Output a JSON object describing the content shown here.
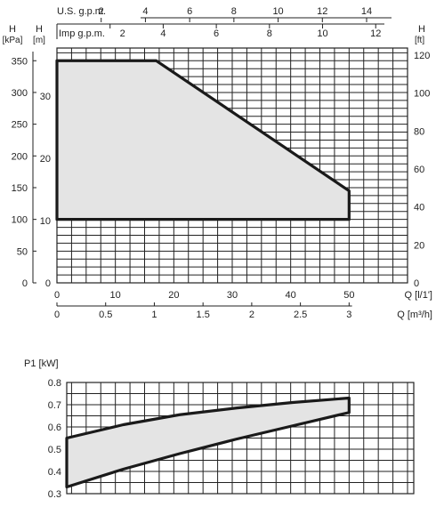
{
  "chart_data": [
    {
      "type": "area",
      "top_axis_1": {
        "label": "U.S. g.p.m.",
        "ticks": [
          "2",
          "4",
          "6",
          "8",
          "10",
          "12",
          "14"
        ]
      },
      "top_axis_2": {
        "label": "Imp g.p.m.",
        "ticks": [
          "2",
          "4",
          "6",
          "8",
          "10",
          "12"
        ]
      },
      "left_axis_kpa": {
        "title": "H",
        "unit": "[kPa]",
        "ticks": [
          "0",
          "50",
          "100",
          "150",
          "200",
          "250",
          "300",
          "350"
        ],
        "ylim": [
          0,
          370
        ]
      },
      "left_axis_m": {
        "title": "H",
        "unit": "[m]",
        "ticks": [
          "0",
          "10",
          "20",
          "30"
        ]
      },
      "right_axis_ft": {
        "title": "H",
        "unit": "[ft]",
        "ticks": [
          "0",
          "20",
          "40",
          "60",
          "80",
          "100",
          "120"
        ]
      },
      "x_axis_ls": {
        "label": "Q [l/1']",
        "ticks": [
          "0",
          "10",
          "20",
          "30",
          "40",
          "50"
        ],
        "xlim": [
          0,
          60
        ]
      },
      "x_axis_m3h": {
        "label": "Q [m³/h]",
        "ticks": [
          "0",
          "0.5",
          "1",
          "1.5",
          "2",
          "2.5",
          "3"
        ]
      },
      "envelope": {
        "x": [
          0,
          17,
          50,
          50,
          0
        ],
        "y": [
          350,
          350,
          145,
          100,
          100
        ]
      },
      "grid": true
    },
    {
      "type": "area",
      "y_axis": {
        "label": "P1 [kW]",
        "ticks": [
          "0.3",
          "0.4",
          "0.5",
          "0.6",
          "0.7",
          "0.8"
        ],
        "ylim": [
          0.3,
          0.8
        ]
      },
      "envelope": {
        "upper": {
          "x": [
            0,
            10,
            20,
            30,
            40,
            50
          ],
          "y": [
            0.55,
            0.61,
            0.655,
            0.685,
            0.71,
            0.73
          ]
        },
        "lower": {
          "x": [
            0,
            10,
            20,
            30,
            40,
            50
          ],
          "y": [
            0.33,
            0.41,
            0.48,
            0.545,
            0.605,
            0.665
          ]
        }
      },
      "grid": true
    }
  ]
}
